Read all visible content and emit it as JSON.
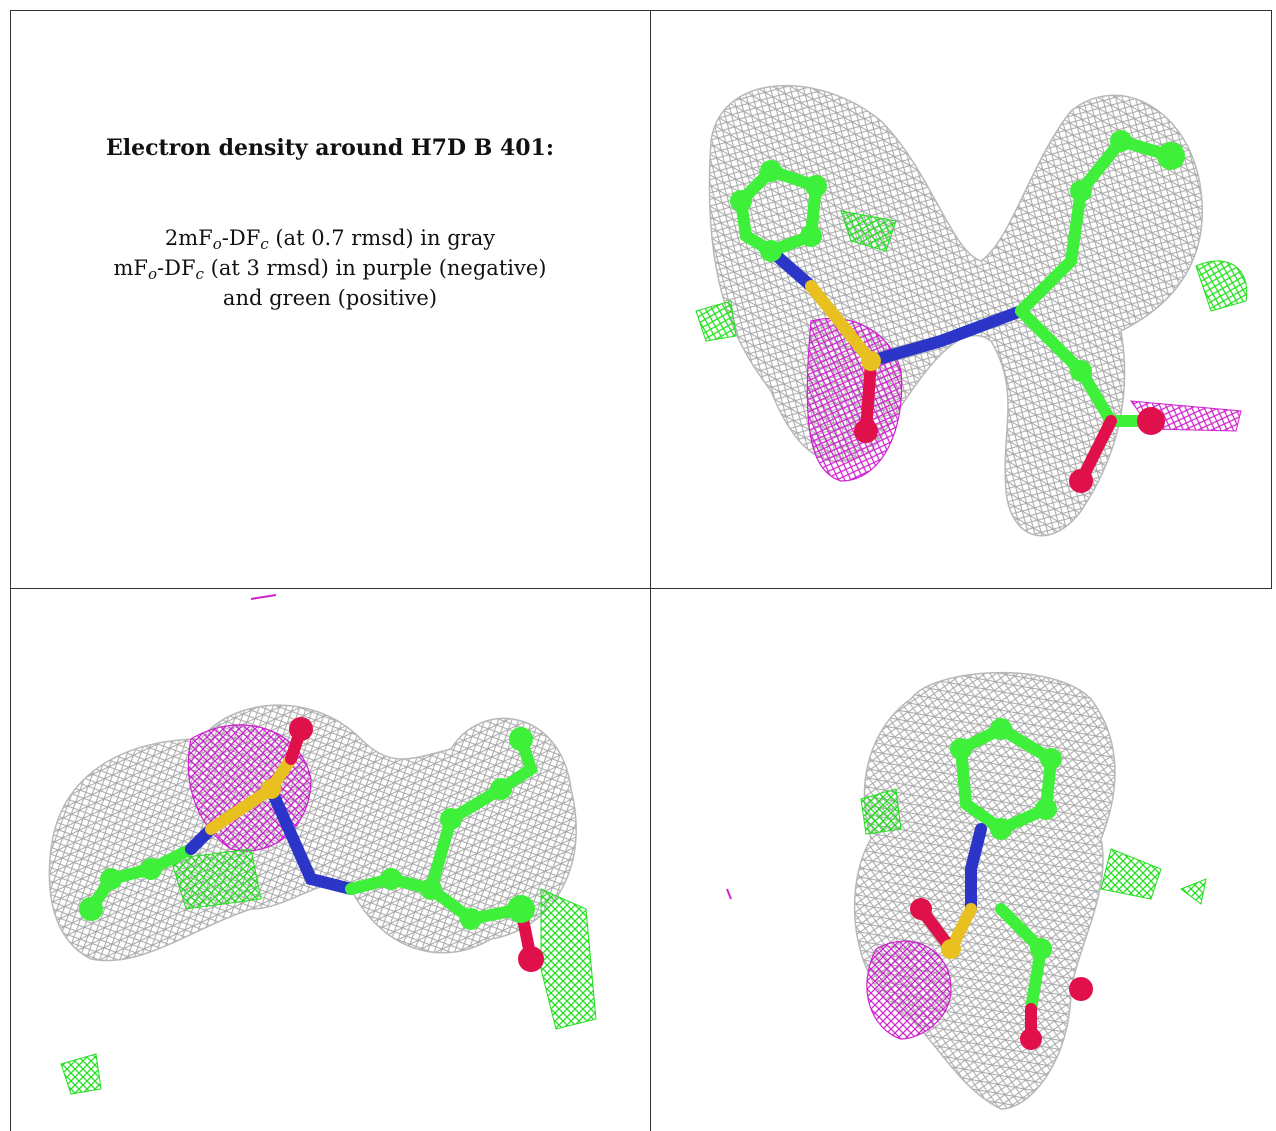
{
  "caption": {
    "title": "Electron density around H7D B 401:",
    "line1": {
      "a": "2mF",
      "s1": "o",
      "b": "-DF",
      "s2": "c",
      "c": " (at 0.7 rmsd) in gray"
    },
    "line2": {
      "a": "mF",
      "s1": "o",
      "b": "-DF",
      "s2": "c",
      "c": " (at 3 rmsd) in purple (negative)"
    },
    "line3": "and green (positive)"
  },
  "views": [
    {
      "id": "view-top-right"
    },
    {
      "id": "view-bottom-left"
    },
    {
      "id": "view-bottom-right"
    }
  ],
  "colors": {
    "mesh_gray": "#a8a8a8",
    "mesh_green": "#22e01e",
    "mesh_purple": "#d020d0",
    "carbon": "#3ef03a",
    "nitrogen": "#2b35c8",
    "oxygen": "#e0104a",
    "sulfur": "#e8c020",
    "grid_line": "#333333"
  }
}
